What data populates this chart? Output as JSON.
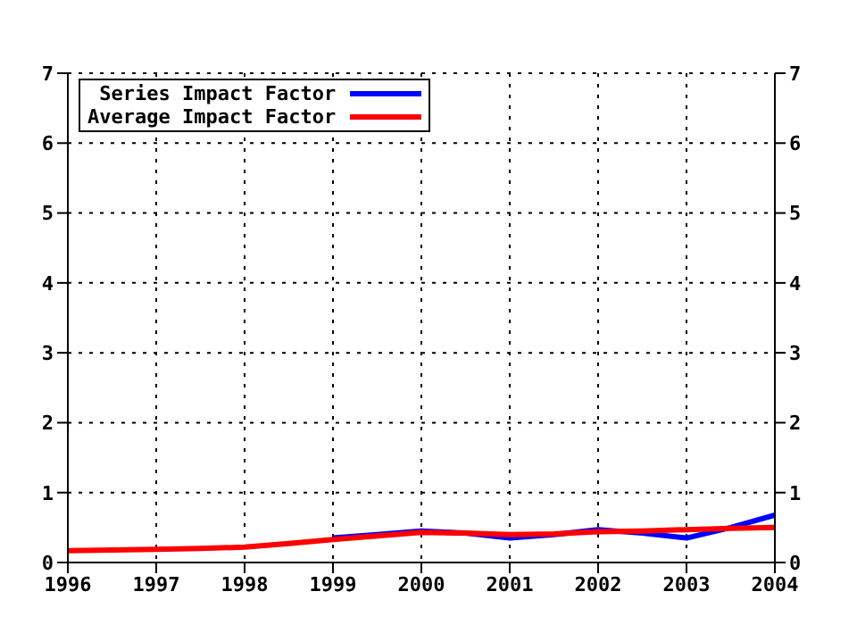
{
  "chart_data": {
    "type": "line",
    "x": [
      1996,
      1996.5,
      1997,
      1997.5,
      1998,
      1998.5,
      1999,
      1999.5,
      2000,
      2000.5,
      2001,
      2001.5,
      2002,
      2002.5,
      2003,
      2003.5,
      2004
    ],
    "series": [
      {
        "name": "Series Impact Factor",
        "color": "#0000ff",
        "values": [
          null,
          null,
          null,
          null,
          null,
          null,
          0.35,
          0.4,
          0.45,
          0.42,
          0.35,
          0.4,
          0.47,
          0.42,
          0.35,
          0.5,
          0.68
        ]
      },
      {
        "name": "Average Impact Factor",
        "color": "#ff0000",
        "values": [
          0.17,
          0.18,
          0.19,
          0.2,
          0.22,
          0.27,
          0.33,
          0.38,
          0.43,
          0.42,
          0.4,
          0.41,
          0.44,
          0.45,
          0.47,
          0.49,
          0.5
        ]
      }
    ],
    "xlim": [
      1996,
      2004
    ],
    "xticks": [
      1996,
      1997,
      1998,
      1999,
      2000,
      2001,
      2002,
      2003,
      2004
    ],
    "ylim": [
      0,
      7
    ],
    "yticks": [
      0,
      1,
      2,
      3,
      4,
      5,
      6,
      7
    ],
    "y2lim": [
      0,
      7
    ],
    "y2ticks": [
      0,
      1,
      2,
      3,
      4,
      5,
      6,
      7
    ],
    "grid": true,
    "legend": "top left",
    "marker": "none",
    "line_style": "solid"
  }
}
